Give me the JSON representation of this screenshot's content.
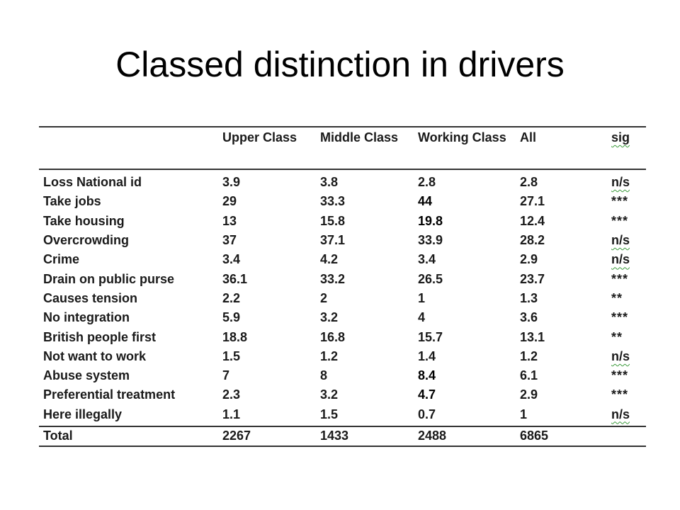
{
  "slide": {
    "title": "Classed distinction in drivers"
  },
  "table": {
    "headers": {
      "label": "",
      "upper": "Upper Class",
      "middle": "Middle Class",
      "working": "Working Class",
      "all": "All",
      "sig": "sig"
    },
    "rows": [
      {
        "label": "Loss National id",
        "upper": "3.9",
        "middle": "3.8",
        "working": "2.8",
        "all": "2.8",
        "sig": "n/s"
      },
      {
        "label": "Take jobs",
        "upper": "29",
        "middle": "33.3",
        "working": "44",
        "all": "27.1",
        "sig": "***"
      },
      {
        "label": "Take housing",
        "upper": "13",
        "middle": "15.8",
        "working": "19.8",
        "all": "12.4",
        "sig": "***"
      },
      {
        "label": "Overcrowding",
        "upper": "37",
        "middle": "37.1",
        "working": "33.9",
        "all": "28.2",
        "sig": "n/s"
      },
      {
        "label": "Crime",
        "upper": "3.4",
        "middle": "4.2",
        "working": "3.4",
        "all": "2.9",
        "sig": "n/s"
      },
      {
        "label": "Drain on public purse",
        "upper": "36.1",
        "middle": "33.2",
        "working": "26.5",
        "all": "23.7",
        "sig": "***"
      },
      {
        "label": "Causes tension",
        "upper": "2.2",
        "middle": "2",
        "working": "1",
        "all": "1.3",
        "sig": "**"
      },
      {
        "label": "No integration",
        "upper": "5.9",
        "middle": "3.2",
        "working": "4",
        "all": "3.6",
        "sig": "***"
      },
      {
        "label": "British people first",
        "upper": "18.8",
        "middle": "16.8",
        "working": "15.7",
        "all": "13.1",
        "sig": "**"
      },
      {
        "label": "Not want to work",
        "upper": "1.5",
        "middle": "1.2",
        "working": "1.4",
        "all": "1.2",
        "sig": "n/s"
      },
      {
        "label": "Abuse system",
        "upper": "7",
        "middle": "8",
        "working": "8.4",
        "all": "6.1",
        "sig": "***"
      },
      {
        "label": "Preferential treatment",
        "upper": "2.3",
        "middle": "3.2",
        "working": "4.7",
        "all": "2.9",
        "sig": "***"
      },
      {
        "label": "Here illegally",
        "upper": "1.1",
        "middle": "1.5",
        "working": "0.7",
        "all": "1",
        "sig": "n/s"
      }
    ],
    "total": {
      "label": "Total",
      "upper": "2267",
      "middle": "1433",
      "working": "2488",
      "all": "6865",
      "sig": ""
    }
  }
}
